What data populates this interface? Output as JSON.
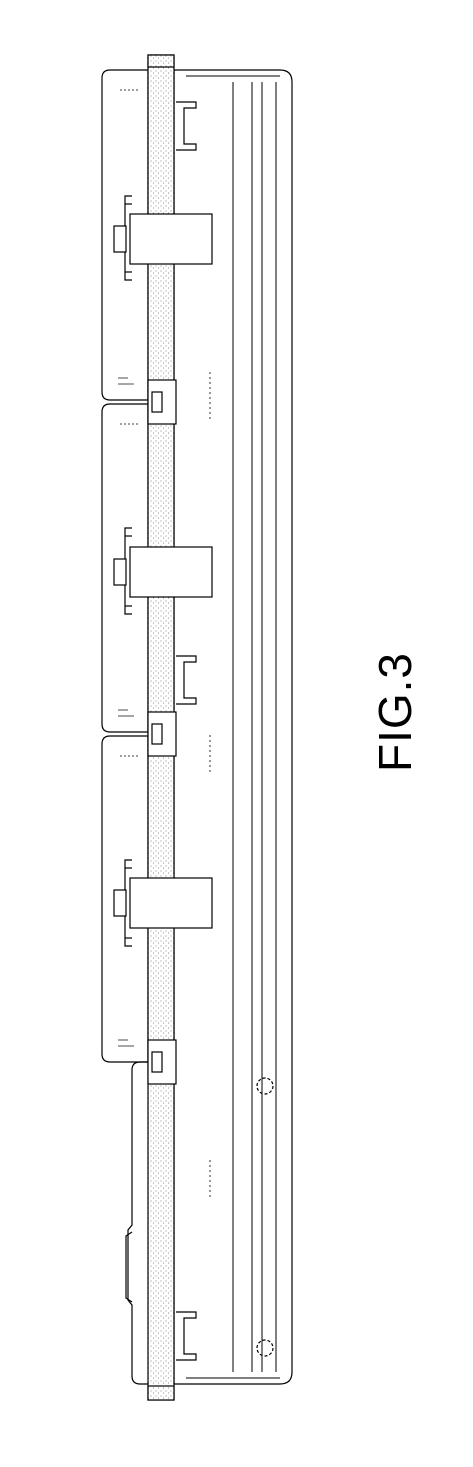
{
  "figure": {
    "caption": "FIG.3"
  }
}
